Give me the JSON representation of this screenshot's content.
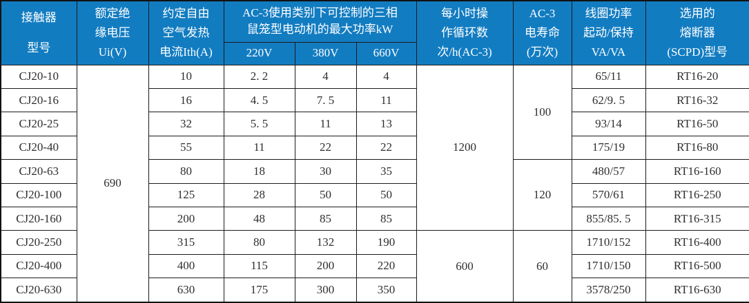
{
  "colors": {
    "header_bg": "#127CC1",
    "header_text": "#FFFFFF",
    "body_text": "#2E2E2E",
    "border": "#1A1A1A"
  },
  "table": {
    "header": {
      "model": [
        "接触器",
        "型号"
      ],
      "voltage": [
        "额定绝",
        "缘电压",
        "Ui(V)"
      ],
      "current": [
        "约定自由",
        "空气发热",
        "电流Ith(A)"
      ],
      "power_group": [
        "AC-3使用类别下可控制的三相",
        "鼠笼型电动机的最大功率kW"
      ],
      "power_subs": [
        "220V",
        "380V",
        "660V"
      ],
      "cycles": [
        "每小时操",
        "作循环数",
        "次/h(AC-3)"
      ],
      "life": [
        "AC-3",
        "电寿命",
        "(万次)"
      ],
      "coil": [
        "线圈功率",
        "起动/保持",
        "VA/VA"
      ],
      "fuse": [
        "选用的",
        "熔断器",
        "(SCPD)型号"
      ]
    },
    "rows": [
      {
        "model": "CJ20-10",
        "ith": "10",
        "p220": "2. 2",
        "p380": "4",
        "p660": "4",
        "coil": "65/11",
        "fuse": "RT16-20",
        "voltage": {
          "value": "690",
          "rowspan": 10
        },
        "cycles": {
          "value": "1200",
          "rowspan": 7
        },
        "life": {
          "value": "100",
          "rowspan": 4
        }
      },
      {
        "model": "CJ20-16",
        "ith": "16",
        "p220": "4. 5",
        "p380": "7. 5",
        "p660": "11",
        "coil": "62/9. 5",
        "fuse": "RT16-32"
      },
      {
        "model": "CJ20-25",
        "ith": "32",
        "p220": "5. 5",
        "p380": "11",
        "p660": "13",
        "coil": "93/14",
        "fuse": "RT16-50"
      },
      {
        "model": "CJ20-40",
        "ith": "55",
        "p220": "11",
        "p380": "22",
        "p660": "22",
        "coil": "175/19",
        "fuse": "RT16-80"
      },
      {
        "model": "CJ20-63",
        "ith": "80",
        "p220": "18",
        "p380": "30",
        "p660": "35",
        "coil": "480/57",
        "fuse": "RT16-160",
        "life": {
          "value": "120",
          "rowspan": 3
        }
      },
      {
        "model": "CJ20-100",
        "ith": "125",
        "p220": "28",
        "p380": "50",
        "p660": "50",
        "coil": "570/61",
        "fuse": "RT16-250"
      },
      {
        "model": "CJ20-160",
        "ith": "200",
        "p220": "48",
        "p380": "85",
        "p660": "85",
        "coil": "855/85. 5",
        "fuse": "RT16-315"
      },
      {
        "model": "CJ20-250",
        "ith": "315",
        "p220": "80",
        "p380": "132",
        "p660": "190",
        "coil": "1710/152",
        "fuse": "RT16-400",
        "cycles": {
          "value": "600",
          "rowspan": 3
        },
        "life": {
          "value": "60",
          "rowspan": 3
        }
      },
      {
        "model": "CJ20-400",
        "ith": "400",
        "p220": "115",
        "p380": "200",
        "p660": "220",
        "coil": "1710/150",
        "fuse": "RT16-500"
      },
      {
        "model": "CJ20-630",
        "ith": "630",
        "p220": "175",
        "p380": "300",
        "p660": "350",
        "coil": "3578/250",
        "fuse": "RT16-630"
      }
    ]
  },
  "chart_data": {
    "type": "table",
    "columns": [
      "接触器型号",
      "额定绝缘电压Ui(V)",
      "约定自由空气发热电流Ith(A)",
      "AC-3最大功率kW 220V",
      "AC-3最大功率kW 380V",
      "AC-3最大功率kW 660V",
      "每小时操作循环数 次/h(AC-3)",
      "AC-3电寿命(万次)",
      "线圈功率 起动/保持 VA/VA",
      "选用的熔断器(SCPD)型号"
    ],
    "rows": [
      [
        "CJ20-10",
        "690",
        "10",
        "2.2",
        "4",
        "4",
        "1200",
        "100",
        "65/11",
        "RT16-20"
      ],
      [
        "CJ20-16",
        "690",
        "16",
        "4.5",
        "7.5",
        "11",
        "1200",
        "100",
        "62/9.5",
        "RT16-32"
      ],
      [
        "CJ20-25",
        "690",
        "32",
        "5.5",
        "11",
        "13",
        "1200",
        "100",
        "93/14",
        "RT16-50"
      ],
      [
        "CJ20-40",
        "690",
        "55",
        "11",
        "22",
        "22",
        "1200",
        "100",
        "175/19",
        "RT16-80"
      ],
      [
        "CJ20-63",
        "690",
        "80",
        "18",
        "30",
        "35",
        "1200",
        "120",
        "480/57",
        "RT16-160"
      ],
      [
        "CJ20-100",
        "690",
        "125",
        "28",
        "50",
        "50",
        "1200",
        "120",
        "570/61",
        "RT16-250"
      ],
      [
        "CJ20-160",
        "690",
        "200",
        "48",
        "85",
        "85",
        "1200",
        "120",
        "855/85.5",
        "RT16-315"
      ],
      [
        "CJ20-250",
        "690",
        "315",
        "80",
        "132",
        "190",
        "600",
        "60",
        "1710/152",
        "RT16-400"
      ],
      [
        "CJ20-400",
        "690",
        "400",
        "115",
        "200",
        "220",
        "600",
        "60",
        "1710/150",
        "RT16-500"
      ],
      [
        "CJ20-630",
        "690",
        "630",
        "175",
        "300",
        "350",
        "600",
        "60",
        "3578/250",
        "RT16-630"
      ]
    ]
  }
}
